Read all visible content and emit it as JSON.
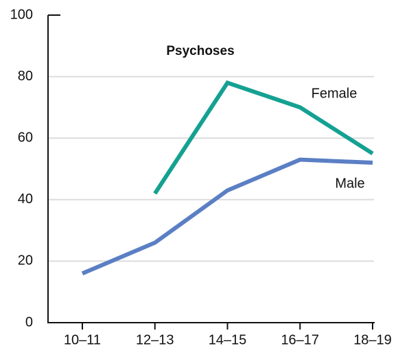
{
  "chart_data": {
    "type": "line",
    "title": "Psychoses",
    "categories": [
      "10–11",
      "12–13",
      "14–15",
      "16–17",
      "18–19"
    ],
    "series": [
      {
        "name": "Female",
        "color": "#14a192",
        "values": [
          null,
          42,
          78,
          70,
          55
        ]
      },
      {
        "name": "Male",
        "color": "#5b7fc4",
        "values": [
          16,
          26,
          43,
          53,
          52
        ]
      }
    ],
    "ylim": [
      0,
      100
    ],
    "yticks": [
      0,
      20,
      40,
      60,
      80,
      100
    ],
    "grid": true
  }
}
